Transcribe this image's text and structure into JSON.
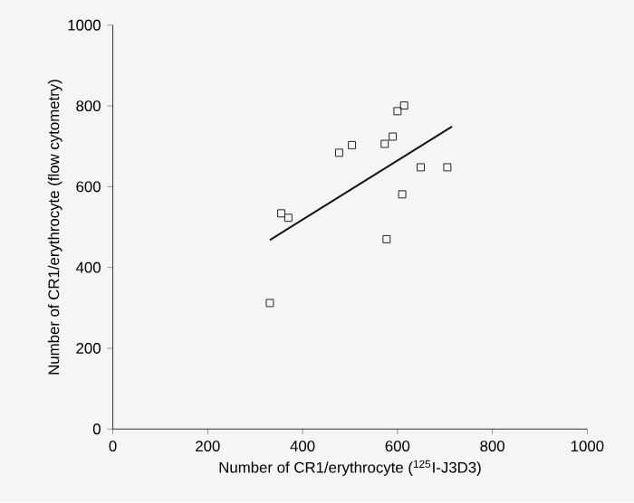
{
  "chart_data": {
    "type": "scatter",
    "xlabel": "Number of CR1/erythrocyte ($^{125}$I-J3D3)",
    "ylabel": "Number of CR1/erythrocyte (flow cytometry)",
    "xlim": [
      0,
      1000
    ],
    "ylim": [
      0,
      1000
    ],
    "xticks": [
      0,
      200,
      400,
      600,
      800,
      1000
    ],
    "yticks": [
      0,
      200,
      400,
      600,
      800,
      1000
    ],
    "series": [
      {
        "marker": "square",
        "color": "#222222",
        "x": [
          331,
          355,
          370,
          477,
          504,
          573,
          590,
          600,
          614,
          649,
          705,
          610,
          577
        ],
        "values": [
          312,
          534,
          523,
          684,
          703,
          706,
          724,
          787,
          801,
          648,
          648,
          581,
          470
        ]
      },
      {
        "type": "line",
        "marker": "none",
        "color": "#111111",
        "x": [
          331,
          715
        ],
        "values": [
          468,
          749
        ]
      }
    ]
  }
}
